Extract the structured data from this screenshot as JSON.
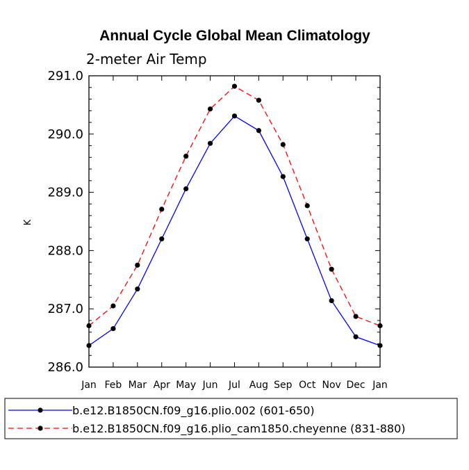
{
  "chart_data": {
    "type": "line",
    "title": "Annual Cycle Global Mean Climatology",
    "subtitle": "2-meter Air Temp",
    "xlabel": "",
    "ylabel": "K",
    "categories": [
      "Jan",
      "Feb",
      "Mar",
      "Apr",
      "May",
      "Jun",
      "Jul",
      "Aug",
      "Sep",
      "Oct",
      "Nov",
      "Dec",
      "Jan"
    ],
    "ylim": [
      286.0,
      291.0
    ],
    "yticks": [
      "286.0",
      "287.0",
      "288.0",
      "289.0",
      "290.0",
      "291.0"
    ],
    "series": [
      {
        "name": "b.e12.B1850CN.f09_g16.plio.002 (601-650)",
        "color": "#0000ff",
        "dash": "solid",
        "values": [
          286.37,
          286.66,
          287.34,
          288.2,
          289.06,
          289.84,
          290.31,
          290.06,
          289.27,
          288.2,
          287.14,
          286.52,
          286.37
        ]
      },
      {
        "name": "b.e12.B1850CN.f09_g16.plio_cam1850.cheyenne (831-880)",
        "color": "#ff0000",
        "dash": "dashed",
        "values": [
          286.71,
          287.05,
          287.75,
          288.71,
          289.62,
          290.43,
          290.82,
          290.58,
          289.82,
          288.77,
          287.68,
          286.87,
          286.71
        ]
      }
    ]
  }
}
